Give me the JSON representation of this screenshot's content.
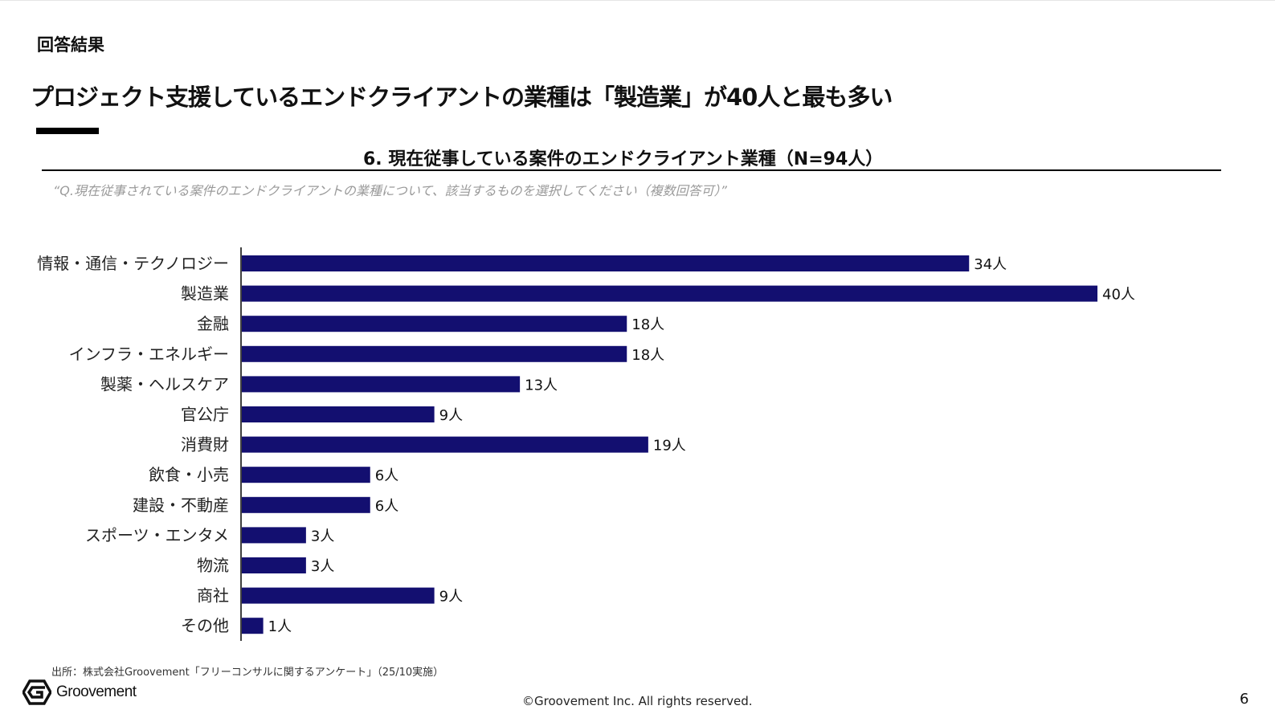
{
  "header": {
    "section_label": "回答結果",
    "headline": "プロジェクト支援しているエンドクライアントの業種は「製造業」が40人と最も多い"
  },
  "colors": {
    "bar": "#130f70",
    "accent": "#000000"
  },
  "chart_data": {
    "type": "bar",
    "orientation": "horizontal",
    "title": "6. 現在従事している案件のエンドクライアント業種（N=94人）",
    "question": "“Q.現在従事されている案件のエンドクライアントの業種について、該当するものを選択してください（複数回答可）”",
    "categories": [
      "情報・通信・テクノロジー",
      "製造業",
      "金融",
      "インフラ・エネルギー",
      "製薬・ヘルスケア",
      "官公庁",
      "消費財",
      "飲食・小売",
      "建設・不動産",
      "スポーツ・エンタメ",
      "物流",
      "商社",
      "その他"
    ],
    "values": [
      34,
      40,
      18,
      18,
      13,
      9,
      19,
      6,
      6,
      3,
      3,
      9,
      1
    ],
    "value_labels": [
      "34人",
      "40人",
      "18人",
      "18人",
      "13人",
      "9人",
      "19人",
      "6人",
      "6人",
      "3人",
      "3人",
      "9人",
      "1人"
    ],
    "unit": "人",
    "xlim": [
      0,
      40
    ],
    "grid": false,
    "legend": "none"
  },
  "footer": {
    "source": "出所：株式会社Groovement「フリーコンサルに関するアンケート」（25/10実施）",
    "logo_text": "Groovement",
    "copyright": "©Groovement Inc. All rights reserved.",
    "page_number": "6"
  }
}
